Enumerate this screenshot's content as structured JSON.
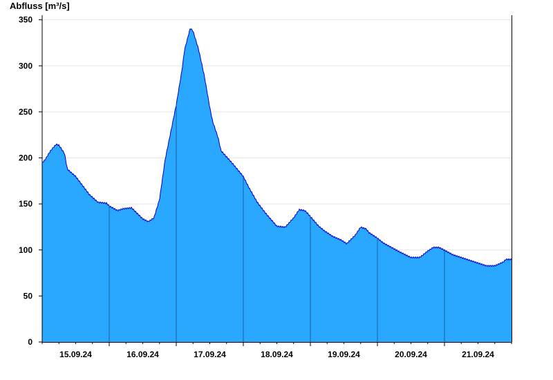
{
  "chart_data": {
    "type": "area",
    "ylabel": "Abfluss [m³/s]",
    "ylim": [
      0,
      355
    ],
    "yticks": [
      0,
      50,
      100,
      150,
      200,
      250,
      300,
      350
    ],
    "xlim": [
      "2024-09-14T12:00",
      "2024-09-21T12:00"
    ],
    "day_labels": [
      "15.09.24",
      "16.09.24",
      "17.09.24",
      "18.09.24",
      "19.09.24",
      "20.09.24",
      "21.09.24"
    ],
    "day_separators": [
      "2024-09-15T12:00",
      "2024-09-16T12:00",
      "2024-09-17T12:00",
      "2024-09-18T12:00",
      "2024-09-19T12:00",
      "2024-09-20T12:00"
    ],
    "grid": true,
    "fill_color": "#2aa7ff",
    "line_color": "#0000cc",
    "series": [
      {
        "x": [
          "2024-09-14T12:00",
          "2024-09-14T13:00",
          "2024-09-14T15:00",
          "2024-09-14T17:00",
          "2024-09-14T18:00",
          "2024-09-14T20:00",
          "2024-09-14T21:00",
          "2024-09-15T00:00",
          "2024-09-15T02:00",
          "2024-09-15T05:00",
          "2024-09-15T08:00",
          "2024-09-15T11:00",
          "2024-09-15T12:00",
          "2024-09-15T15:00",
          "2024-09-15T17:00",
          "2024-09-15T20:00",
          "2024-09-15T22:00",
          "2024-09-16T00:00",
          "2024-09-16T02:00",
          "2024-09-16T04:00",
          "2024-09-16T06:00",
          "2024-09-16T08:00",
          "2024-09-16T10:00",
          "2024-09-16T12:00",
          "2024-09-16T14:00",
          "2024-09-16T15:00",
          "2024-09-16T17:00",
          "2024-09-16T18:00",
          "2024-09-16T20:00",
          "2024-09-16T22:00",
          "2024-09-17T00:00",
          "2024-09-17T01:00",
          "2024-09-17T03:00",
          "2024-09-17T04:00",
          "2024-09-17T07:00",
          "2024-09-17T09:00",
          "2024-09-17T12:00",
          "2024-09-17T14:00",
          "2024-09-17T17:00",
          "2024-09-17T20:00",
          "2024-09-17T22:00",
          "2024-09-18T00:00",
          "2024-09-18T03:00",
          "2024-09-18T06:00",
          "2024-09-18T08:00",
          "2024-09-18T10:00",
          "2024-09-18T11:00",
          "2024-09-18T13:00",
          "2024-09-18T15:00",
          "2024-09-18T17:00",
          "2024-09-18T20:00",
          "2024-09-18T23:00",
          "2024-09-19T01:00",
          "2024-09-19T04:00",
          "2024-09-19T06:00",
          "2024-09-19T08:00",
          "2024-09-19T09:00",
          "2024-09-19T12:00",
          "2024-09-19T14:00",
          "2024-09-19T17:00",
          "2024-09-19T20:00",
          "2024-09-19T22:00",
          "2024-09-20T00:00",
          "2024-09-20T03:00",
          "2024-09-20T04:00",
          "2024-09-20T06:00",
          "2024-09-20T08:00",
          "2024-09-20T10:00",
          "2024-09-20T12:00",
          "2024-09-20T15:00",
          "2024-09-20T18:00",
          "2024-09-20T21:00",
          "2024-09-21T00:00",
          "2024-09-21T03:00",
          "2024-09-21T06:00",
          "2024-09-21T09:00",
          "2024-09-21T10:00",
          "2024-09-21T12:00"
        ],
        "values": [
          195,
          198,
          208,
          215,
          214,
          205,
          188,
          180,
          172,
          160,
          152,
          151,
          148,
          143,
          145,
          146,
          140,
          134,
          131,
          135,
          155,
          198,
          228,
          258,
          295,
          318,
          341,
          338,
          318,
          290,
          255,
          240,
          222,
          208,
          198,
          191,
          180,
          168,
          152,
          140,
          133,
          126,
          125,
          135,
          144,
          143,
          140,
          133,
          126,
          121,
          115,
          111,
          107,
          116,
          125,
          123,
          119,
          113,
          108,
          103,
          98,
          95,
          92,
          92,
          94,
          99,
          103,
          103,
          100,
          95,
          92,
          89,
          86,
          83,
          83,
          87,
          90,
          90
        ]
      }
    ]
  }
}
